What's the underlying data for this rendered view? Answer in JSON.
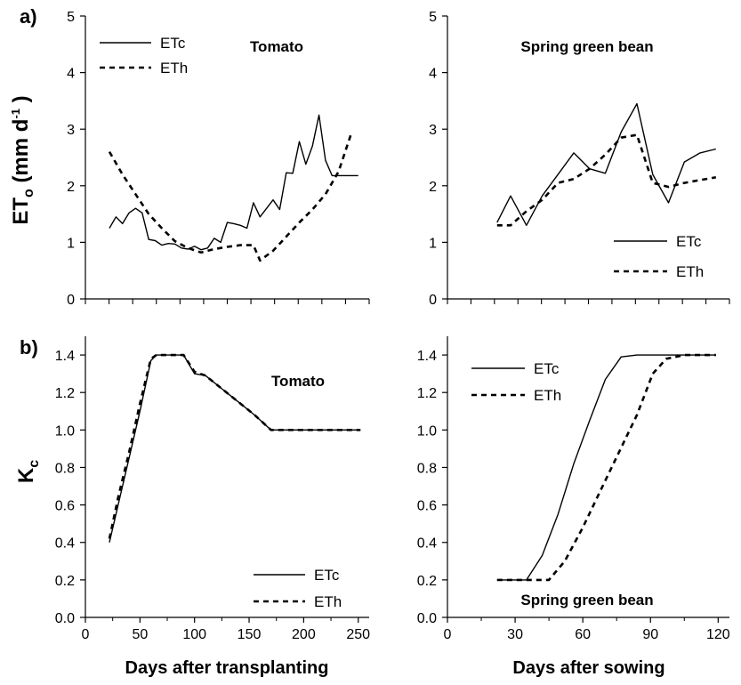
{
  "figure": {
    "panel_a_label": "a)",
    "panel_b_label": "b)",
    "row1_ylabel": {
      "main": "ET",
      "sub": "o",
      "unit_open": " (mm d",
      "sup": "-1",
      "unit_close": " )"
    },
    "row2_ylabel": {
      "main": "K",
      "sub": "c"
    },
    "bottom_left_xlabel": "Days after transplanting",
    "bottom_right_xlabel": "Days after sowing"
  },
  "chart_data": [
    {
      "id": "a-tomato",
      "type": "line",
      "title": "Tomato",
      "xlim": [
        0,
        260
      ],
      "ylim": [
        0,
        5
      ],
      "yticks": [
        0,
        1,
        2,
        3,
        4,
        5
      ],
      "xtick_labels_shown": false,
      "legend": "top-left",
      "series": [
        {
          "name": "ETc",
          "style": "solid",
          "x": [
            22,
            28,
            34,
            40,
            46,
            52,
            58,
            64,
            70,
            76,
            82,
            88,
            94,
            100,
            106,
            112,
            118,
            124,
            130,
            136,
            142,
            148,
            154,
            160,
            166,
            172,
            178,
            184,
            190,
            196,
            202,
            208,
            214,
            220,
            226,
            232,
            238,
            244,
            250
          ],
          "y": [
            1.25,
            1.45,
            1.33,
            1.52,
            1.6,
            1.52,
            1.05,
            1.03,
            0.95,
            0.98,
            0.97,
            0.9,
            0.88,
            0.93,
            0.87,
            0.9,
            1.07,
            1.0,
            1.35,
            1.33,
            1.3,
            1.25,
            1.7,
            1.45,
            1.6,
            1.75,
            1.58,
            2.23,
            2.22,
            2.78,
            2.38,
            2.7,
            3.25,
            2.45,
            2.18,
            2.18,
            2.18,
            2.18,
            2.18
          ]
        },
        {
          "name": "ETh",
          "style": "dashed",
          "x": [
            22,
            34,
            46,
            58,
            70,
            82,
            94,
            106,
            118,
            130,
            142,
            154,
            160,
            172,
            184,
            196,
            208,
            220,
            232,
            244
          ],
          "y": [
            2.6,
            2.2,
            1.85,
            1.5,
            1.25,
            1.02,
            0.9,
            0.82,
            0.88,
            0.92,
            0.95,
            0.95,
            0.68,
            0.85,
            1.1,
            1.35,
            1.58,
            1.85,
            2.25,
            2.95
          ]
        }
      ]
    },
    {
      "id": "a-bean",
      "type": "line",
      "title": "Spring green bean",
      "xlim": [
        0,
        125
      ],
      "ylim": [
        0,
        5
      ],
      "yticks": [
        0,
        1,
        2,
        3,
        4,
        5
      ],
      "xtick_labels_shown": false,
      "legend": "bottom-right",
      "series": [
        {
          "name": "ETc",
          "style": "solid",
          "x": [
            22,
            28,
            35,
            42,
            49,
            56,
            63,
            70,
            77,
            84,
            91,
            98,
            105,
            112,
            119
          ],
          "y": [
            1.35,
            1.82,
            1.3,
            1.82,
            2.2,
            2.58,
            2.3,
            2.22,
            2.95,
            3.45,
            2.2,
            1.7,
            2.42,
            2.58,
            2.65
          ]
        },
        {
          "name": "ETh",
          "style": "dashed",
          "x": [
            22,
            28,
            35,
            42,
            49,
            56,
            63,
            70,
            77,
            84,
            91,
            98,
            105,
            112,
            119
          ],
          "y": [
            1.3,
            1.3,
            1.55,
            1.75,
            2.05,
            2.12,
            2.3,
            2.55,
            2.85,
            2.9,
            2.05,
            1.98,
            2.05,
            2.1,
            2.15
          ]
        }
      ]
    },
    {
      "id": "b-tomato",
      "type": "line",
      "title": "Tomato",
      "xlim": [
        0,
        260
      ],
      "ylim": [
        0,
        1.5
      ],
      "yticks": [
        0.0,
        0.2,
        0.4,
        0.6,
        0.8,
        1.0,
        1.2,
        1.4
      ],
      "ytick_labels": [
        "0.0",
        "0.2",
        "0.4",
        "0.6",
        "0.8",
        "1.0",
        "1.2",
        "1.4"
      ],
      "xticks": [
        0,
        50,
        100,
        150,
        200,
        250
      ],
      "xtick_labels": [
        "0",
        "50",
        "100",
        "150",
        "200",
        "250"
      ],
      "legend": "bottom-right",
      "series": [
        {
          "name": "ETc",
          "style": "solid",
          "x": [
            22,
            30,
            40,
            50,
            60,
            65,
            75,
            90,
            100,
            110,
            125,
            140,
            155,
            170,
            200,
            252
          ],
          "y": [
            0.4,
            0.6,
            0.85,
            1.1,
            1.37,
            1.4,
            1.4,
            1.4,
            1.3,
            1.29,
            1.22,
            1.15,
            1.08,
            1.0,
            1.0,
            1.0
          ]
        },
        {
          "name": "ETh",
          "style": "dashed",
          "x": [
            22,
            30,
            40,
            50,
            60,
            65,
            75,
            90,
            100,
            110,
            125,
            140,
            155,
            170,
            200,
            252
          ],
          "y": [
            0.42,
            0.64,
            0.88,
            1.14,
            1.38,
            1.4,
            1.4,
            1.4,
            1.31,
            1.29,
            1.22,
            1.15,
            1.08,
            1.0,
            1.0,
            1.0
          ]
        }
      ]
    },
    {
      "id": "b-bean",
      "type": "line",
      "title": "Spring green bean",
      "xlim": [
        0,
        125
      ],
      "ylim": [
        0,
        1.5
      ],
      "yticks": [
        0.0,
        0.2,
        0.4,
        0.6,
        0.8,
        1.0,
        1.2,
        1.4
      ],
      "ytick_labels": [
        "0.0",
        "0.2",
        "0.4",
        "0.6",
        "0.8",
        "1.0",
        "1.2",
        "1.4"
      ],
      "xticks": [
        0,
        30,
        60,
        90,
        120
      ],
      "xtick_labels": [
        "0",
        "30",
        "60",
        "90",
        "120"
      ],
      "legend": "top-left",
      "series": [
        {
          "name": "ETc",
          "style": "solid",
          "x": [
            22,
            35,
            42,
            49,
            56,
            63,
            70,
            77,
            84,
            90,
            105,
            119
          ],
          "y": [
            0.2,
            0.2,
            0.33,
            0.55,
            0.82,
            1.05,
            1.27,
            1.39,
            1.4,
            1.4,
            1.4,
            1.4
          ]
        },
        {
          "name": "ETh",
          "style": "dashed",
          "x": [
            22,
            45,
            52,
            60,
            68,
            76,
            84,
            91,
            97,
            105,
            119
          ],
          "y": [
            0.2,
            0.2,
            0.3,
            0.48,
            0.68,
            0.88,
            1.08,
            1.3,
            1.38,
            1.4,
            1.4
          ]
        }
      ]
    }
  ]
}
